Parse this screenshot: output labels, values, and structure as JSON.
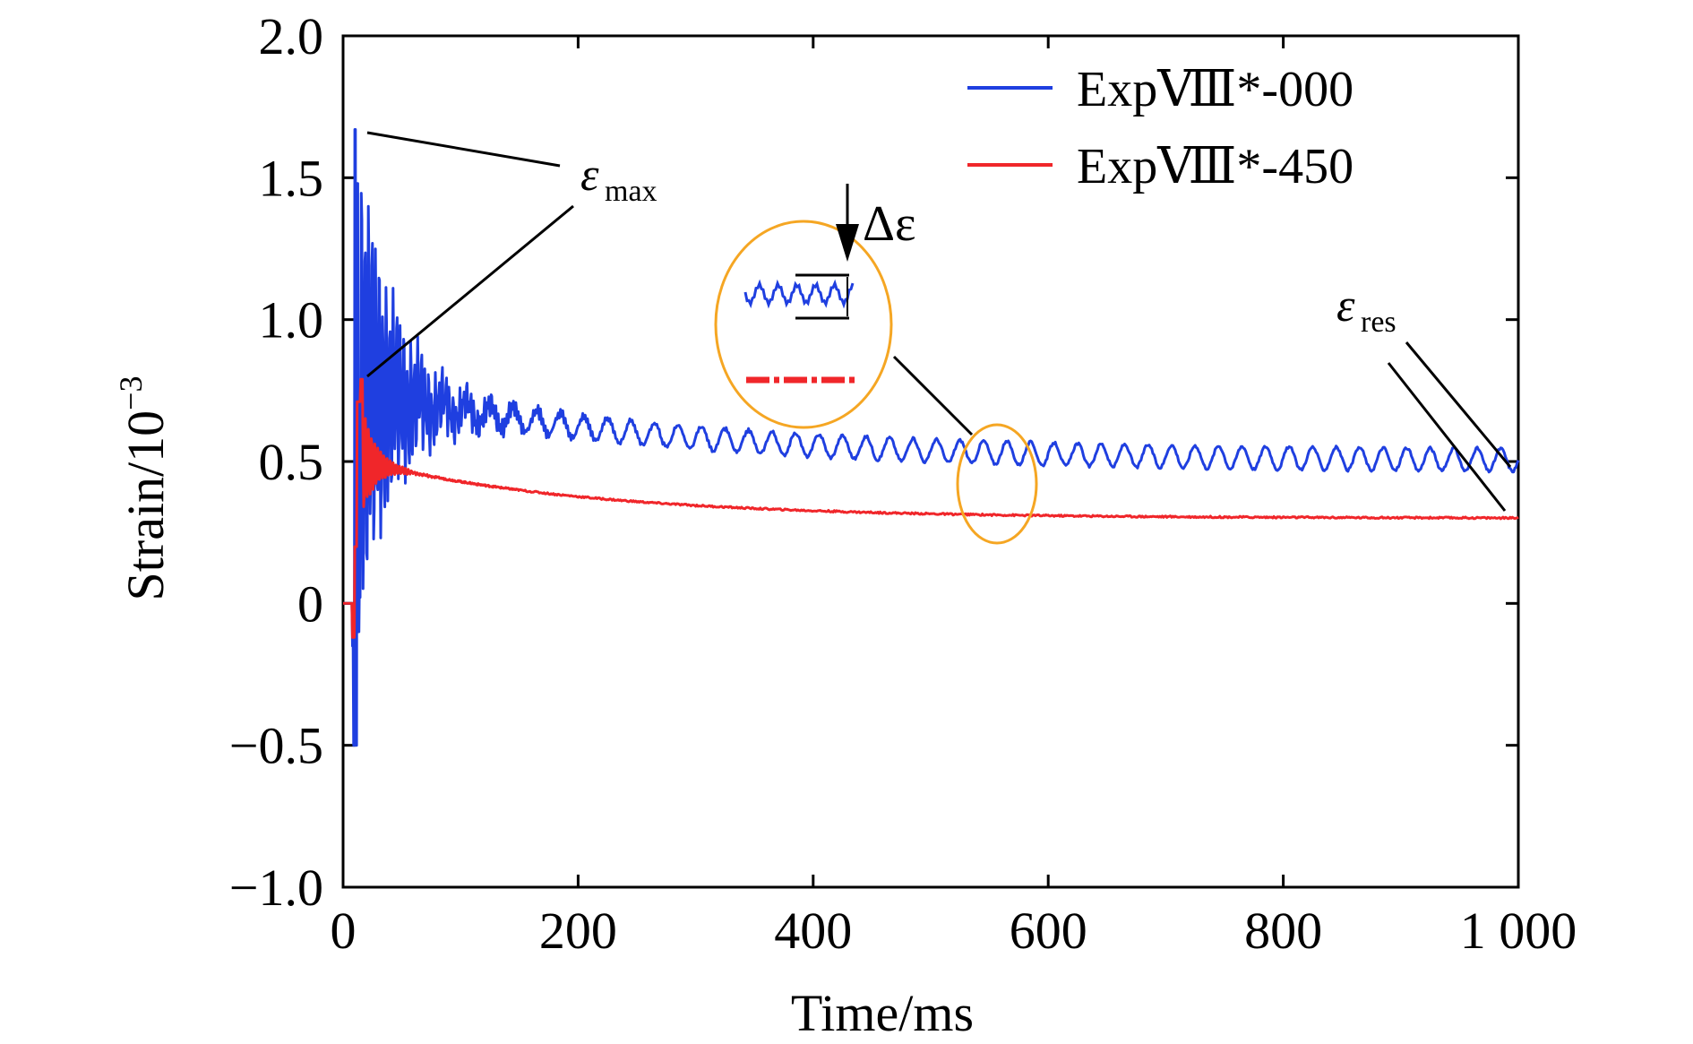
{
  "chart_data": {
    "type": "line",
    "title": "",
    "xlabel": "Time/ms",
    "ylabel_base": "Strain/10",
    "ylabel_exp": "−3",
    "xlim": [
      0,
      1000
    ],
    "ylim": [
      -1.0,
      2.0
    ],
    "x_ticks": [
      0,
      200,
      400,
      600,
      800,
      1000
    ],
    "x_tick_labels": [
      "0",
      "200",
      "400",
      "600",
      "800",
      "1 000"
    ],
    "y_ticks": [
      -1.0,
      -0.5,
      0,
      0.5,
      1.0,
      1.5,
      2.0
    ],
    "y_tick_labels": [
      "−1.0",
      "−0.5",
      "0",
      "0.5",
      "1.0",
      "1.5",
      "2.0"
    ],
    "grid": false,
    "legend_position": "top-right",
    "series": [
      {
        "name": "ExpⅧ*-000",
        "color": "#1f3fe0",
        "decay": {
          "initial_peak": 1.67,
          "initial_min": -0.5,
          "level_start": 0.75,
          "level_end": 0.5,
          "oscillation_period_ms": 20,
          "oscillation_amplitude": 0.04
        }
      },
      {
        "name": "ExpⅧ*-450",
        "color": "#f0262a",
        "decay": {
          "initial_peak": 0.79,
          "initial_min": -0.12,
          "level_start": 0.5,
          "level_end": 0.3
        }
      }
    ],
    "annotations": {
      "emax_symbol": "ε",
      "emax_sub": "max",
      "eres_symbol": "ε",
      "eres_sub": "res",
      "delta_label": "Δε"
    },
    "inset_color": "#f5a623"
  }
}
